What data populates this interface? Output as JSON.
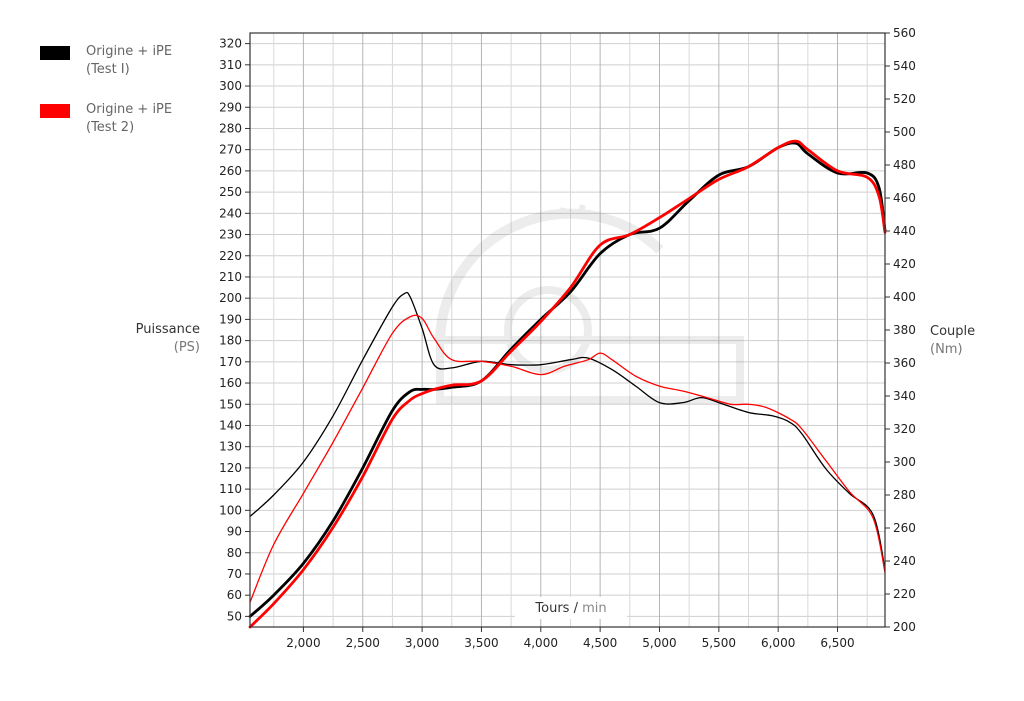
{
  "chart_data": {
    "type": "line",
    "legend": [
      {
        "label_line1": "Origine + iPE",
        "label_line2": "(Test I)",
        "color": "#000000"
      },
      {
        "label_line1": "Origine + iPE",
        "label_line2": "(Test 2)",
        "color": "#ff0000"
      }
    ],
    "left_axis": {
      "label": "Puissance",
      "unit": "(PS)",
      "range": [
        45,
        325
      ],
      "ticks": [
        50,
        60,
        70,
        80,
        90,
        100,
        110,
        120,
        130,
        140,
        150,
        160,
        170,
        180,
        190,
        200,
        210,
        220,
        230,
        240,
        250,
        260,
        270,
        280,
        290,
        300,
        310,
        320
      ]
    },
    "right_axis": {
      "label": "Couple",
      "unit": "(Nm)",
      "range": [
        200,
        560
      ],
      "ticks": [
        200,
        220,
        240,
        260,
        280,
        300,
        320,
        340,
        360,
        380,
        400,
        420,
        440,
        460,
        480,
        500,
        520,
        540,
        560
      ]
    },
    "x_axis": {
      "label": "Tours",
      "unit_sep": " / ",
      "unit": "min",
      "range": [
        1550,
        6900
      ],
      "tick_values": [
        2000,
        2500,
        3000,
        3500,
        4000,
        4500,
        5000,
        5500,
        6000,
        6500
      ],
      "tick_labels": [
        "2,000",
        "2,500",
        "3,000",
        "3,500",
        "4,000",
        "4,500",
        "5,000",
        "5,500",
        "6,000",
        "6,500"
      ]
    },
    "grid": true,
    "series": [
      {
        "name": "Origine + iPE (Test I)",
        "metric": "Puissance",
        "axis": "left",
        "color": "#000000",
        "width": 2.8,
        "x": [
          1550,
          1750,
          2000,
          2250,
          2500,
          2750,
          2900,
          3000,
          3100,
          3250,
          3500,
          3750,
          4000,
          4250,
          4500,
          4750,
          5000,
          5250,
          5500,
          5750,
          6000,
          6150,
          6250,
          6500,
          6750,
          6850,
          6900
        ],
        "y": [
          50,
          60,
          75,
          95,
          120,
          147,
          156,
          157,
          157,
          158,
          161,
          176,
          190,
          203,
          221,
          230,
          233,
          246,
          258,
          262,
          271,
          273,
          268,
          259,
          259,
          252,
          232
        ]
      },
      {
        "name": "Origine + iPE (Test 2)",
        "metric": "Puissance",
        "axis": "left",
        "color": "#ff0000",
        "width": 2.8,
        "x": [
          1550,
          1750,
          2000,
          2250,
          2500,
          2750,
          2900,
          3000,
          3100,
          3250,
          3500,
          3750,
          4000,
          4250,
          4500,
          4750,
          5000,
          5250,
          5500,
          5750,
          6000,
          6150,
          6250,
          6500,
          6750,
          6850,
          6900
        ],
        "y": [
          45,
          56,
          72,
          92,
          116,
          143,
          152,
          155,
          157,
          159,
          161,
          175,
          189,
          205,
          225,
          230,
          238,
          247,
          256,
          262,
          271,
          274,
          270,
          260,
          257,
          248,
          231
        ]
      },
      {
        "name": "Origine + iPE (Test I)",
        "metric": "Couple",
        "axis": "right",
        "color": "#000000",
        "width": 1.3,
        "x": [
          1550,
          1750,
          2000,
          2250,
          2500,
          2750,
          2850,
          2900,
          3000,
          3100,
          3250,
          3500,
          3750,
          4000,
          4250,
          4400,
          4600,
          4800,
          5000,
          5200,
          5350,
          5500,
          5750,
          5950,
          6100,
          6200,
          6400,
          6600,
          6800,
          6900
        ],
        "y": [
          267,
          280,
          300,
          328,
          362,
          394,
          402,
          400,
          381,
          359,
          357,
          361,
          359,
          359,
          362,
          363,
          356,
          346,
          336,
          336,
          339,
          336,
          330,
          328,
          324,
          317,
          296,
          281,
          268,
          235
        ]
      },
      {
        "name": "Origine + iPE (Test 2)",
        "metric": "Couple",
        "axis": "right",
        "color": "#ff0000",
        "width": 1.3,
        "x": [
          1550,
          1750,
          2000,
          2250,
          2500,
          2750,
          2900,
          3000,
          3100,
          3250,
          3500,
          3750,
          4000,
          4200,
          4400,
          4500,
          4600,
          4800,
          5000,
          5200,
          5400,
          5600,
          5750,
          5900,
          6100,
          6200,
          6400,
          6600,
          6800,
          6900
        ],
        "y": [
          215,
          250,
          281,
          312,
          345,
          378,
          388,
          387,
          375,
          362,
          361,
          358,
          353,
          358,
          362,
          366,
          362,
          352,
          346,
          343,
          339,
          335,
          335,
          333,
          326,
          320,
          301,
          282,
          266,
          233
        ]
      }
    ]
  }
}
